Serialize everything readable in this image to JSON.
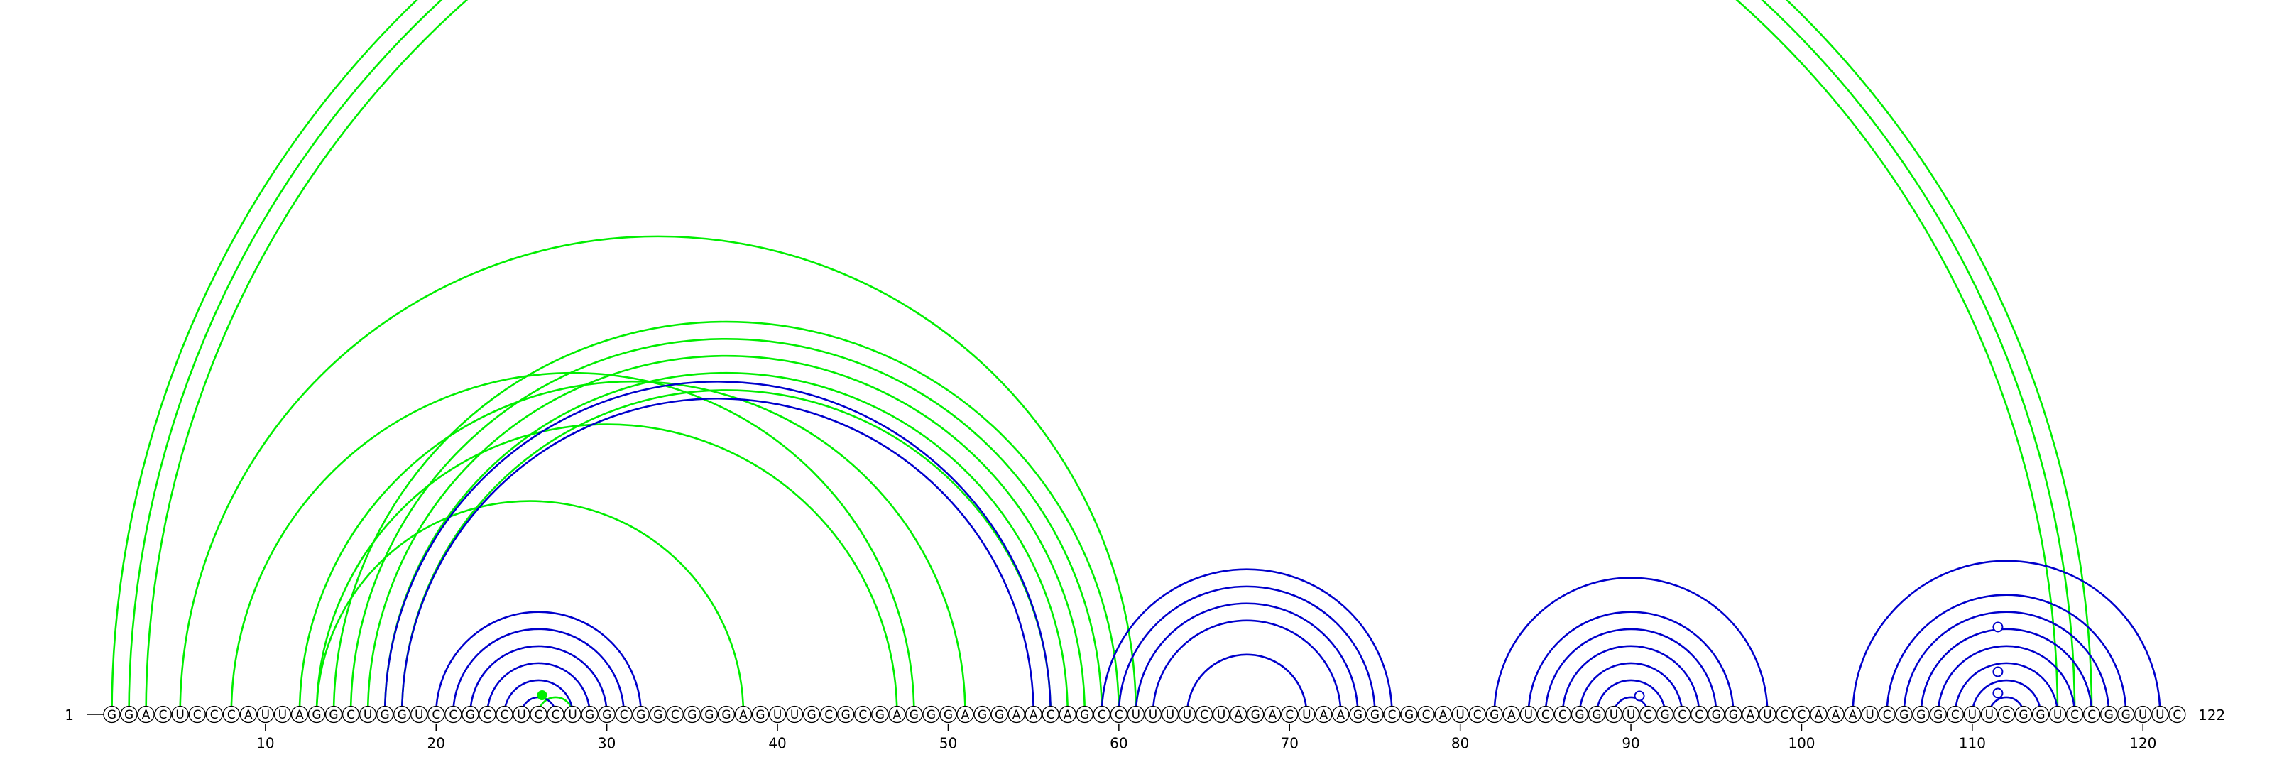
{
  "sequence": "GGACUCCCAUUAGGCUGGUCCGCCUCCUGGCGGCGGGAGUUGCGCGAGGGAGGAACAGCCUUUUCUAGACUAAGGCGCAUCGAUCCGGUUCGCCGGAUCCAAAUCGGGCUUCGGUCCGGUUC",
  "start_label": "1",
  "end_label": "122",
  "start_number": 1,
  "end_number": 122,
  "tick_numbers": [
    10,
    20,
    30,
    40,
    50,
    60,
    70,
    80,
    90,
    100,
    110,
    120
  ],
  "colors": {
    "green": "#00ee00",
    "blue": "#0000cc",
    "marker_fill": "#ffffff",
    "marker_stroke": "#0000cc"
  },
  "arc_groups": [
    {
      "color": "green",
      "pairs": [
        [
          1,
          117
        ],
        [
          2,
          116
        ],
        [
          3,
          115
        ],
        [
          5,
          61
        ],
        [
          8,
          48
        ],
        [
          13,
          38
        ],
        [
          14,
          60
        ],
        [
          15,
          59
        ],
        [
          16,
          58
        ],
        [
          17,
          57
        ],
        [
          18,
          56
        ],
        [
          13,
          47
        ],
        [
          12,
          51
        ],
        [
          26,
          28
        ]
      ]
    },
    {
      "color": "blue",
      "pairs": [
        [
          17,
          56
        ],
        [
          18,
          55
        ],
        [
          20,
          32
        ],
        [
          21,
          31
        ],
        [
          22,
          30
        ],
        [
          23,
          29
        ],
        [
          24,
          28
        ],
        [
          25,
          27
        ],
        [
          59,
          76
        ],
        [
          60,
          75
        ],
        [
          61,
          74
        ],
        [
          62,
          73
        ],
        [
          64,
          71
        ],
        [
          82,
          98
        ],
        [
          84,
          96
        ],
        [
          85,
          95
        ],
        [
          86,
          94
        ],
        [
          87,
          93
        ],
        [
          88,
          92
        ],
        [
          89,
          91
        ],
        [
          103,
          121
        ],
        [
          105,
          119
        ],
        [
          106,
          118
        ],
        [
          107,
          117
        ],
        [
          108,
          116
        ],
        [
          109,
          115
        ],
        [
          110,
          114
        ],
        [
          111,
          113
        ]
      ]
    }
  ],
  "green_dot_positions": [
    26
  ],
  "hollow_markers": [
    {
      "position": 90.5,
      "height": 26
    },
    {
      "position": 111.5,
      "height": 30
    },
    {
      "position": 111.5,
      "height": 60
    },
    {
      "position": 111.5,
      "height": 123
    }
  ]
}
